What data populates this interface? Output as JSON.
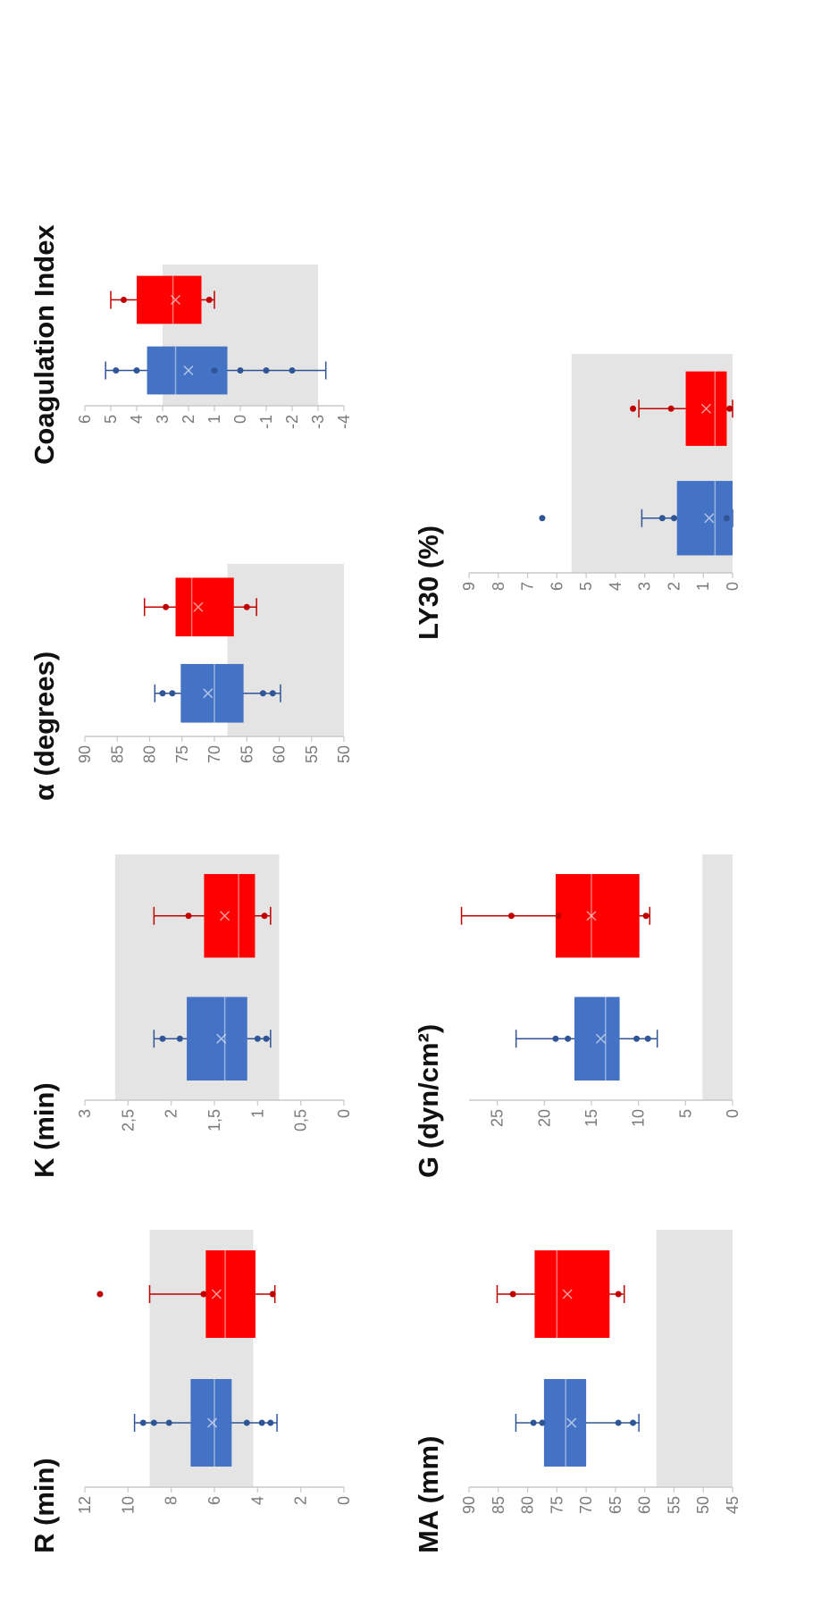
{
  "colors": {
    "blue": "#4472c4",
    "red": "#ff0000",
    "reference_range": "#e4e4e4",
    "axis": "#c8c8c8",
    "dot_blue": "#2f5597",
    "dot_red": "#c00000"
  },
  "chart_data": [
    {
      "type": "box",
      "title": "R (min)",
      "ylim": [
        0,
        12
      ],
      "ticks": [
        "0",
        "2",
        "4",
        "6",
        "8",
        "10",
        "12"
      ],
      "reference_range": [
        4.2,
        9.0
      ],
      "series": [
        {
          "color": "blue",
          "whisker_low": 3.1,
          "q1": 5.2,
          "median": 6.0,
          "mean": 6.1,
          "q3": 7.1,
          "whisker_high": 9.7,
          "points": [
            3.4,
            3.8,
            4.5,
            8.1,
            8.8,
            9.3
          ],
          "outliers": []
        },
        {
          "color": "red",
          "whisker_low": 3.2,
          "q1": 4.1,
          "median": 5.5,
          "mean": 5.9,
          "q3": 6.4,
          "whisker_high": 9.0,
          "points": [
            3.3,
            6.5
          ],
          "outliers": [
            11.3
          ]
        }
      ]
    },
    {
      "type": "box",
      "title": "K (min)",
      "ylim": [
        0,
        3
      ],
      "ticks": [
        "0",
        "0,5",
        "1",
        "1,5",
        "2",
        "2,5",
        "3"
      ],
      "reference_range": [
        0.75,
        2.65
      ],
      "series": [
        {
          "color": "blue",
          "whisker_low": 0.85,
          "q1": 1.12,
          "median": 1.38,
          "mean": 1.42,
          "q3": 1.82,
          "whisker_high": 2.2,
          "points": [
            0.9,
            1.0,
            1.9,
            2.1
          ],
          "outliers": []
        },
        {
          "color": "red",
          "whisker_low": 0.85,
          "q1": 1.03,
          "median": 1.22,
          "mean": 1.38,
          "q3": 1.62,
          "whisker_high": 2.2,
          "points": [
            0.92,
            1.8
          ],
          "outliers": []
        }
      ]
    },
    {
      "type": "box",
      "title": "α (degrees)",
      "ylim": [
        50,
        90
      ],
      "ticks": [
        "50",
        "55",
        "60",
        "65",
        "70",
        "75",
        "80",
        "85",
        "90"
      ],
      "reference_range": [
        50,
        68
      ],
      "series": [
        {
          "color": "blue",
          "whisker_low": 59.8,
          "q1": 65.5,
          "median": 70.0,
          "mean": 71.0,
          "q3": 75.2,
          "whisker_high": 79.2,
          "points": [
            61.0,
            62.5,
            76.5,
            78.0
          ],
          "outliers": []
        },
        {
          "color": "red",
          "whisker_low": 63.5,
          "q1": 67.0,
          "median": 73.5,
          "mean": 72.5,
          "q3": 76.0,
          "whisker_high": 80.8,
          "points": [
            65.0,
            77.5
          ],
          "outliers": []
        }
      ]
    },
    {
      "type": "box",
      "title": "Coagulation Index",
      "ylim": [
        -4,
        6
      ],
      "ticks": [
        "-4",
        "-3",
        "-2",
        "-1",
        "0",
        "1",
        "2",
        "3",
        "4",
        "5",
        "6"
      ],
      "reference_range": [
        -3,
        3
      ],
      "series": [
        {
          "color": "blue",
          "whisker_low": -3.3,
          "q1": 0.5,
          "median": 2.5,
          "mean": 2.0,
          "q3": 3.6,
          "whisker_high": 5.2,
          "points": [
            -2.0,
            -1.0,
            0.0,
            1.0,
            4.0,
            4.8
          ],
          "outliers": []
        },
        {
          "color": "red",
          "whisker_low": 1.0,
          "q1": 1.5,
          "median": 2.6,
          "mean": 2.5,
          "q3": 4.0,
          "whisker_high": 5.0,
          "points": [
            1.2,
            4.5
          ],
          "outliers": []
        }
      ]
    },
    {
      "type": "box",
      "title": "MA (mm)",
      "ylim": [
        45,
        90
      ],
      "ticks": [
        "45",
        "50",
        "55",
        "60",
        "65",
        "70",
        "75",
        "80",
        "85",
        "90"
      ],
      "reference_range": [
        45,
        58
      ],
      "series": [
        {
          "color": "blue",
          "whisker_low": 61.0,
          "q1": 70.0,
          "median": 73.5,
          "mean": 72.5,
          "q3": 77.2,
          "whisker_high": 82.0,
          "points": [
            62.0,
            64.5,
            77.5,
            79.0
          ],
          "outliers": []
        },
        {
          "color": "red",
          "whisker_low": 63.5,
          "q1": 66.0,
          "median": 75.0,
          "mean": 73.2,
          "q3": 78.8,
          "whisker_high": 85.2,
          "points": [
            64.5,
            82.5
          ],
          "outliers": []
        }
      ]
    },
    {
      "type": "box",
      "title": "G (dyn/cm²)",
      "ylim": [
        0,
        28
      ],
      "ticks": [
        "0",
        "5",
        "10",
        "15",
        "20",
        "25"
      ],
      "reference_range": [
        0,
        3.2
      ],
      "series": [
        {
          "color": "blue",
          "whisker_low": 8.0,
          "q1": 12.0,
          "median": 13.5,
          "mean": 14.0,
          "q3": 16.8,
          "whisker_high": 23.0,
          "points": [
            9.0,
            10.2,
            17.5,
            18.8
          ],
          "outliers": []
        },
        {
          "color": "red",
          "whisker_low": 8.8,
          "q1": 9.9,
          "median": 15.0,
          "mean": 15.0,
          "q3": 18.8,
          "whisker_high": 28.8,
          "points": [
            9.2,
            18.5,
            23.5
          ],
          "outliers": []
        }
      ]
    },
    {
      "type": "box",
      "title": "LY30 (%)",
      "ylim": [
        0,
        9
      ],
      "ticks": [
        "0",
        "1",
        "2",
        "3",
        "4",
        "5",
        "6",
        "7",
        "8",
        "9"
      ],
      "reference_range": [
        0,
        5.5
      ],
      "series": [
        {
          "color": "blue",
          "whisker_low": 0.0,
          "q1": 0.0,
          "median": 0.6,
          "mean": 0.8,
          "q3": 1.9,
          "whisker_high": 3.1,
          "points": [
            0.2,
            2.0,
            2.4
          ],
          "outliers": [
            6.5
          ]
        },
        {
          "color": "red",
          "whisker_low": 0.0,
          "q1": 0.2,
          "median": 0.6,
          "mean": 0.9,
          "q3": 1.6,
          "whisker_high": 3.2,
          "points": [
            0.1,
            2.1,
            3.4
          ],
          "outliers": []
        }
      ]
    }
  ]
}
